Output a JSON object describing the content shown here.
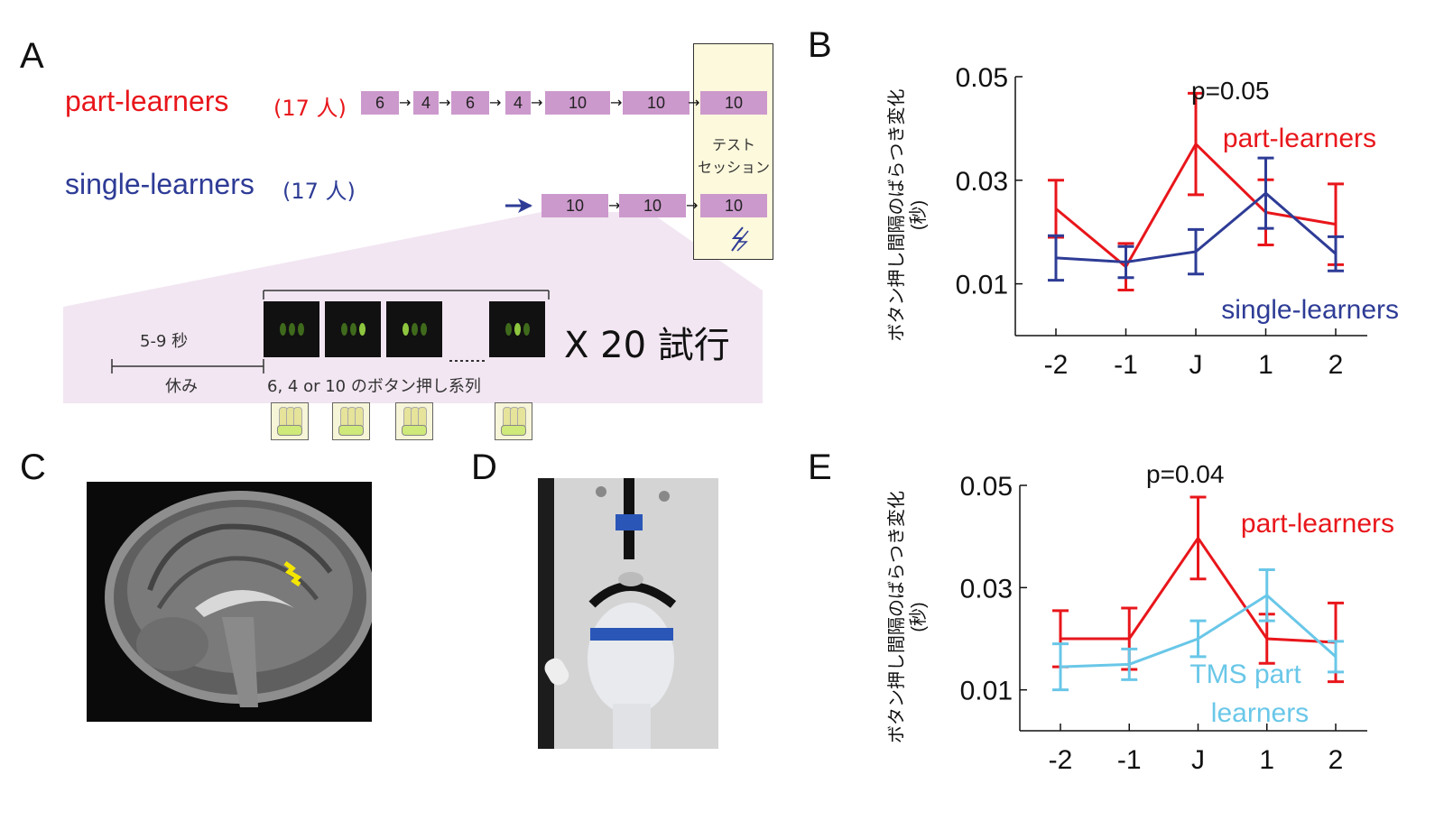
{
  "panels": {
    "a": "A",
    "b": "B",
    "c": "C",
    "d": "D",
    "e": "E"
  },
  "panel_a": {
    "part_label": "part-learners",
    "part_count": "(17 人)",
    "single_label": "single-learners",
    "single_count": "(17 人)",
    "part_blocks": [
      "6",
      "4",
      "6",
      "4",
      "10",
      "10",
      "10"
    ],
    "single_blocks": [
      "10",
      "10",
      "10"
    ],
    "test_session": [
      "テスト",
      "セッション"
    ],
    "rest_time": "5-9 秒",
    "rest_label": "休み",
    "sequence_label": "6, 4 or 10 のボタン押し系列",
    "repeat_label": "X 20 試行",
    "colors": {
      "part": "#e8161b",
      "single": "#2e3c96",
      "block": "#cc99cc",
      "test_bg": "#fdf9dc"
    }
  },
  "chart_data": [
    {
      "type": "line",
      "panel": "B",
      "categories": [
        "-2",
        "-1",
        "J",
        "1",
        "2"
      ],
      "ylabel": "ボタン押し間隔のばらつき変化 (秒)",
      "ylim": [
        0,
        0.05
      ],
      "yticks": [
        "0.01",
        "0.03",
        "0.05"
      ],
      "annotation": "p=0.05",
      "series": [
        {
          "name": "part-learners",
          "color": "#e8161b",
          "values": [
            0.0245,
            0.0133,
            0.037,
            0.0238,
            0.0215
          ],
          "err": [
            0.0055,
            0.0045,
            0.0098,
            0.0063,
            0.0078
          ]
        },
        {
          "name": "single-learners",
          "color": "#2e3c96",
          "values": [
            0.015,
            0.0142,
            0.0162,
            0.0275,
            0.0158
          ],
          "err": [
            0.0043,
            0.003,
            0.0043,
            0.0068,
            0.0033
          ]
        }
      ]
    },
    {
      "type": "line",
      "panel": "E",
      "categories": [
        "-2",
        "-1",
        "J",
        "1",
        "2"
      ],
      "ylabel": "ボタン押し間隔のばらつき変化 (秒)",
      "ylim": [
        0.002,
        0.05
      ],
      "yticks": [
        "0.01",
        "0.03",
        "0.05"
      ],
      "annotation": "p=0.04",
      "series": [
        {
          "name": "part-learners",
          "color": "#e8161b",
          "values": [
            0.02,
            0.02,
            0.0397,
            0.02,
            0.0193
          ],
          "err": [
            0.0055,
            0.006,
            0.008,
            0.0048,
            0.0077
          ]
        },
        {
          "name": "TMS part learners",
          "color": "#69c7e8",
          "values": [
            0.0145,
            0.015,
            0.02,
            0.0285,
            0.0165
          ],
          "err": [
            0.0045,
            0.003,
            0.0035,
            0.005,
            0.003
          ]
        }
      ]
    }
  ]
}
